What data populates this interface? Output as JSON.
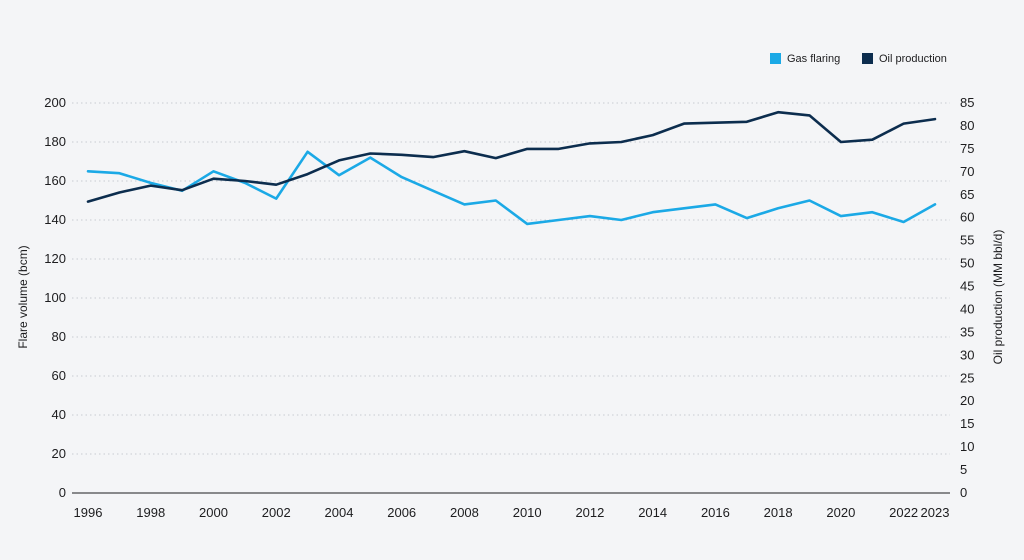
{
  "chart_data": {
    "type": "line",
    "legend_position": "top-right",
    "grid": true,
    "ylabel": "Flare volume (bcm)",
    "y2label": "Oil production (MM bbl/d)",
    "ylim": [
      0,
      200
    ],
    "y2lim": [
      0,
      85
    ],
    "yticks": [
      "0",
      "20",
      "40",
      "60",
      "80",
      "100",
      "120",
      "140",
      "160",
      "180",
      "200"
    ],
    "y2ticks": [
      "0",
      "5",
      "10",
      "15",
      "20",
      "25",
      "30",
      "35",
      "40",
      "45",
      "50",
      "55",
      "60",
      "65",
      "70",
      "75",
      "80",
      "85"
    ],
    "xticks": [
      "1996",
      "1998",
      "2000",
      "2002",
      "2004",
      "2006",
      "2008",
      "2010",
      "2012",
      "2014",
      "2016",
      "2018",
      "2020",
      "2022",
      "2023"
    ],
    "x": [
      1996,
      1997,
      1998,
      1999,
      2000,
      2001,
      2002,
      2003,
      2004,
      2005,
      2006,
      2007,
      2008,
      2009,
      2010,
      2011,
      2012,
      2013,
      2014,
      2015,
      2016,
      2017,
      2018,
      2019,
      2020,
      2021,
      2022,
      2023
    ],
    "series": [
      {
        "name": "Gas flaring",
        "axis": "left",
        "color": "#1ba9e6",
        "values": [
          165,
          164,
          159,
          155,
          165,
          159,
          151,
          175,
          163,
          172,
          162,
          155,
          148,
          150,
          138,
          140,
          142,
          140,
          144,
          146,
          148,
          141,
          146,
          150,
          142,
          144,
          139,
          148
        ]
      },
      {
        "name": "Oil production",
        "axis": "right",
        "color": "#0c2d4e",
        "values": [
          63.5,
          65.5,
          67,
          66,
          68.5,
          68,
          67.2,
          69.5,
          72.5,
          74,
          73.7,
          73.2,
          74.5,
          73,
          75,
          75,
          76.2,
          76.5,
          78,
          80.5,
          80.7,
          80.9,
          83,
          82.3,
          76.5,
          77,
          80.5,
          81.5
        ]
      }
    ]
  }
}
